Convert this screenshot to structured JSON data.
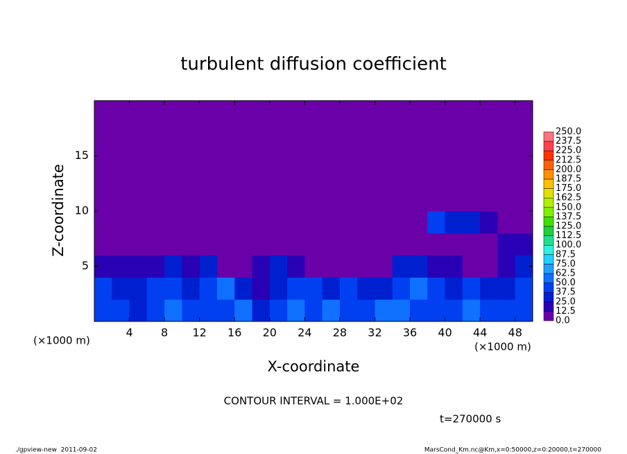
{
  "chart_data": {
    "type": "heatmap",
    "title": "turbulent diffusion coefficient",
    "xlabel": "X-coordinate",
    "ylabel": "Z-coordinate",
    "xunit": "(×1000 m)",
    "xlim": [
      0,
      50
    ],
    "ylim": [
      0,
      20
    ],
    "xticks": [
      4,
      8,
      12,
      16,
      20,
      24,
      28,
      32,
      36,
      40,
      44,
      48
    ],
    "yticks": [
      5,
      10,
      15
    ],
    "x": [
      1,
      3,
      5,
      7,
      9,
      11,
      13,
      15,
      17,
      19,
      21,
      23,
      25,
      27,
      29,
      31,
      33,
      35,
      37,
      39,
      41,
      43,
      45,
      47,
      49
    ],
    "z": [
      1,
      3,
      5,
      7,
      9,
      11,
      13,
      15,
      17,
      19
    ],
    "values": [
      [
        45,
        40,
        35,
        45,
        50,
        40,
        45,
        40,
        55,
        30,
        45,
        50,
        40,
        50,
        45,
        40,
        55,
        50,
        45,
        40,
        45,
        50,
        40,
        45,
        45
      ],
      [
        40,
        30,
        35,
        40,
        45,
        30,
        40,
        50,
        30,
        20,
        30,
        40,
        45,
        35,
        40,
        25,
        30,
        40,
        50,
        45,
        35,
        40,
        30,
        35,
        40
      ],
      [
        20,
        20,
        15,
        20,
        25,
        20,
        30,
        5,
        0,
        20,
        30,
        15,
        0,
        0,
        0,
        0,
        0,
        25,
        30,
        15,
        20,
        10,
        5,
        20,
        25
      ],
      [
        0,
        10,
        5,
        0,
        0,
        0,
        0,
        0,
        0,
        0,
        0,
        0,
        0,
        0,
        0,
        0,
        0,
        0,
        0,
        0,
        0,
        0,
        5,
        15,
        20
      ],
      [
        0,
        0,
        10,
        0,
        0,
        0,
        0,
        0,
        0,
        0,
        0,
        0,
        0,
        0,
        0,
        0,
        0,
        0,
        0,
        40,
        25,
        30,
        15,
        10,
        0
      ],
      [
        0,
        0,
        5,
        0,
        0,
        0,
        0,
        0,
        0,
        0,
        0,
        0,
        0,
        0,
        0,
        0,
        0,
        0,
        0,
        0,
        0,
        0,
        0,
        0,
        0
      ],
      [
        0,
        0,
        0,
        0,
        0,
        0,
        0,
        0,
        0,
        0,
        0,
        0,
        0,
        0,
        0,
        0,
        0,
        0,
        0,
        0,
        0,
        0,
        0,
        0,
        0
      ],
      [
        0,
        0,
        0,
        0,
        0,
        0,
        0,
        0,
        0,
        0,
        0,
        0,
        0,
        0,
        0,
        0,
        0,
        0,
        0,
        0,
        0,
        0,
        0,
        0,
        0
      ],
      [
        0,
        0,
        0,
        0,
        0,
        0,
        0,
        0,
        0,
        0,
        0,
        0,
        0,
        0,
        0,
        0,
        0,
        0,
        0,
        0,
        0,
        0,
        0,
        0,
        0
      ],
      [
        0,
        0,
        0,
        0,
        0,
        0,
        0,
        0,
        0,
        0,
        0,
        0,
        0,
        0,
        0,
        0,
        0,
        0,
        0,
        0,
        0,
        0,
        0,
        0,
        0
      ]
    ],
    "levels": [
      {
        "value": 0,
        "label": "0.0"
      },
      {
        "value": 12.5,
        "label": "12.5"
      },
      {
        "value": 25,
        "label": "25.0"
      },
      {
        "value": 37.5,
        "label": "37.5"
      },
      {
        "value": 50,
        "label": "50.0"
      },
      {
        "value": 62.5,
        "label": "62.5"
      },
      {
        "value": 75,
        "label": "75.0"
      },
      {
        "value": 87.5,
        "label": "87.5"
      },
      {
        "value": 100,
        "label": "100.0"
      },
      {
        "value": 112.5,
        "label": "112.5"
      },
      {
        "value": 125,
        "label": "125.0"
      },
      {
        "value": 137.5,
        "label": "137.5"
      },
      {
        "value": 150,
        "label": "150.0"
      },
      {
        "value": 162.5,
        "label": "162.5"
      },
      {
        "value": 175,
        "label": "175.0"
      },
      {
        "value": 187.5,
        "label": "187.5"
      },
      {
        "value": 200,
        "label": "200.0"
      },
      {
        "value": 212.5,
        "label": "212.5"
      },
      {
        "value": 225,
        "label": "225.0"
      },
      {
        "value": 237.5,
        "label": "237.5"
      },
      {
        "value": 250,
        "label": "250.0"
      }
    ],
    "colors": [
      "#6a00a8",
      "#2a00b4",
      "#0020d0",
      "#0040f0",
      "#1070ff",
      "#20a0ff",
      "#20d0ff",
      "#30f0e0",
      "#20e090",
      "#20d040",
      "#40e000",
      "#80f000",
      "#b0f000",
      "#e0e000",
      "#ffc000",
      "#ff9000",
      "#ff6000",
      "#ff3000",
      "#ff4050",
      "#ff7080"
    ],
    "contour_interval": "CONTOUR INTERVAL = 1.000E+02",
    "time": "t=270000 s",
    "footer_left": "./gpview-new  2011-09-02",
    "footer_right": "MarsCond_Km.nc@Km,x=0:50000,z=0:20000,t=270000"
  }
}
